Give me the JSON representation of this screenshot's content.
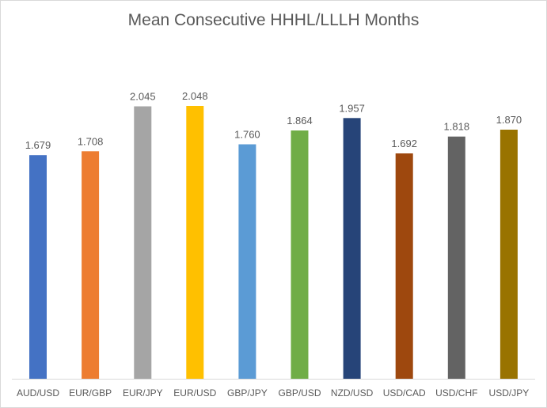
{
  "chart_data": {
    "type": "bar",
    "title": "Mean Consecutive HHHL/LLLH Months",
    "xlabel": "",
    "ylabel": "",
    "categories": [
      "AUD/USD",
      "EUR/GBP",
      "EUR/JPY",
      "EUR/USD",
      "GBP/JPY",
      "GBP/USD",
      "NZD/USD",
      "USD/CAD",
      "USD/CHF",
      "USD/JPY"
    ],
    "values": [
      1.679,
      1.708,
      2.045,
      2.048,
      1.76,
      1.864,
      1.957,
      1.692,
      1.818,
      1.87
    ],
    "data_labels": [
      "1.679",
      "1.708",
      "2.045",
      "2.048",
      "1.760",
      "1.864",
      "1.957",
      "1.692",
      "1.818",
      "1.870"
    ],
    "colors": [
      "#4472c4",
      "#ed7d31",
      "#a5a5a5",
      "#ffc000",
      "#5b9bd5",
      "#70ad47",
      "#264478",
      "#9e480e",
      "#636363",
      "#997300"
    ],
    "ylim": [
      0,
      2.048
    ],
    "grid": false,
    "legend": "none"
  }
}
